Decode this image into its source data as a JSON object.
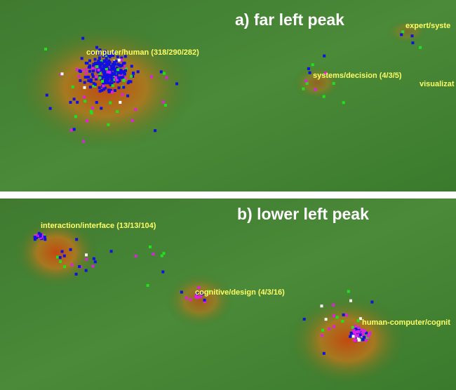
{
  "panels": [
    {
      "title": "a) far left peak",
      "labels": [
        "computer/human (318/290/282)",
        "expert/syste",
        "systems/decision (4/3/5)",
        "visualizat"
      ]
    },
    {
      "title": "b) lower left peak",
      "labels": [
        "interaction/interface (13/13/104)",
        "cognitive/design (4/3/16)",
        "human-computer/cognit"
      ]
    }
  ]
}
